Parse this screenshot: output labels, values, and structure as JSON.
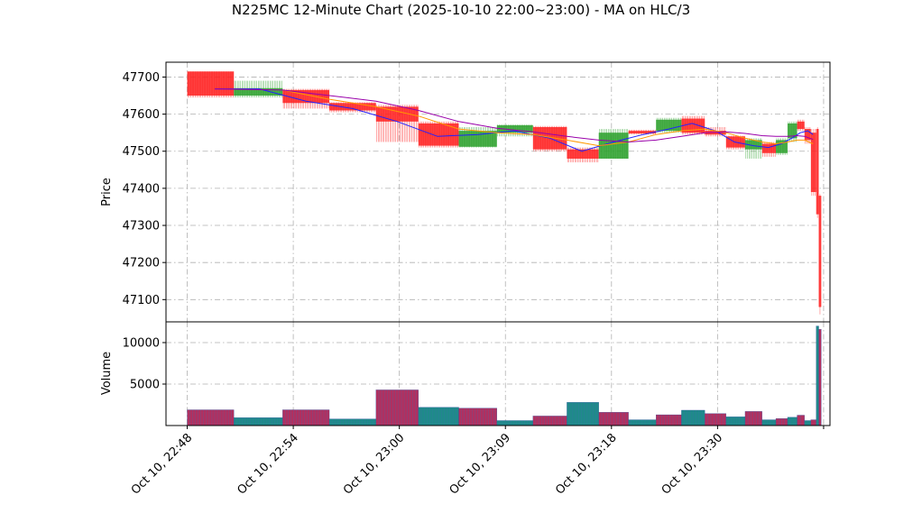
{
  "chart_data": {
    "type": "candlestick",
    "title": "N225MC 12-Minute Chart (2025-10-10 22:00~23:00) - MA on HLC/3",
    "price_panel": {
      "ylabel": "Price",
      "ylim": [
        47040,
        47740
      ],
      "yticks": [
        47100,
        47200,
        47300,
        47400,
        47500,
        47600,
        47700
      ],
      "grid": true
    },
    "volume_panel": {
      "ylabel": "Volume",
      "ylim": [
        0,
        12500
      ],
      "yticks": [
        5000,
        10000
      ],
      "grid": true
    },
    "x_axis": {
      "xlim": [
        -1.0,
        30.3
      ],
      "ticks": [
        {
          "x": 0,
          "label": "Oct 10, 22:48"
        },
        {
          "x": 5,
          "label": "Oct 10, 22:54"
        },
        {
          "x": 10,
          "label": "Oct 10, 23:00"
        },
        {
          "x": 15,
          "label": "Oct 10, 23:09"
        },
        {
          "x": 20,
          "label": "Oct 10, 23:18"
        },
        {
          "x": 25,
          "label": "Oct 10, 23:30"
        },
        {
          "x": 30,
          "label": ""
        }
      ]
    },
    "colors": {
      "up": "#2ca02c",
      "down": "#ff2020",
      "volume": "#b03060",
      "volume_alt": "#1f8a8a",
      "ma_short": "#2020ff",
      "ma_mid": "#ff9900",
      "ma_long": "#9900aa",
      "grid": "#b0b0b0"
    },
    "candles": [
      {
        "x": 0.0,
        "w": 2.2,
        "o": 47715,
        "h": 47715,
        "l": 47645,
        "c": 47650,
        "v": 1900
      },
      {
        "x": 2.2,
        "w": 2.3,
        "o": 47650,
        "h": 47690,
        "l": 47645,
        "c": 47670,
        "v": 950
      },
      {
        "x": 4.5,
        "w": 2.2,
        "o": 47665,
        "h": 47668,
        "l": 47615,
        "c": 47630,
        "v": 1900
      },
      {
        "x": 6.7,
        "w": 2.2,
        "o": 47630,
        "h": 47632,
        "l": 47605,
        "c": 47610,
        "v": 800
      },
      {
        "x": 8.9,
        "w": 2.0,
        "o": 47620,
        "h": 47625,
        "l": 47525,
        "c": 47580,
        "v": 4300
      },
      {
        "x": 10.9,
        "w": 1.9,
        "o": 47575,
        "h": 47580,
        "l": 47510,
        "c": 47515,
        "v": 2200
      },
      {
        "x": 12.8,
        "w": 1.8,
        "o": 47512,
        "h": 47565,
        "l": 47510,
        "c": 47555,
        "v": 2100
      },
      {
        "x": 14.6,
        "w": 1.7,
        "o": 47550,
        "h": 47572,
        "l": 47540,
        "c": 47570,
        "v": 600
      },
      {
        "x": 16.3,
        "w": 1.6,
        "o": 47565,
        "h": 47568,
        "l": 47500,
        "c": 47505,
        "v": 1150
      },
      {
        "x": 17.9,
        "w": 1.5,
        "o": 47505,
        "h": 47510,
        "l": 47470,
        "c": 47480,
        "v": 2800
      },
      {
        "x": 19.4,
        "w": 1.4,
        "o": 47480,
        "h": 47560,
        "l": 47480,
        "c": 47550,
        "v": 1600
      },
      {
        "x": 20.8,
        "w": 1.3,
        "o": 47555,
        "h": 47558,
        "l": 47545,
        "c": 47548,
        "v": 700
      },
      {
        "x": 22.1,
        "w": 1.2,
        "o": 47555,
        "h": 47590,
        "l": 47550,
        "c": 47585,
        "v": 1300
      },
      {
        "x": 23.3,
        "w": 1.1,
        "o": 47588,
        "h": 47595,
        "l": 47545,
        "c": 47550,
        "v": 1850
      },
      {
        "x": 24.4,
        "w": 1.0,
        "o": 47555,
        "h": 47565,
        "l": 47540,
        "c": 47545,
        "v": 1450
      },
      {
        "x": 25.4,
        "w": 0.9,
        "o": 47540,
        "h": 47542,
        "l": 47505,
        "c": 47510,
        "v": 1050
      },
      {
        "x": 26.3,
        "w": 0.8,
        "o": 47505,
        "h": 47535,
        "l": 47480,
        "c": 47530,
        "v": 1700
      },
      {
        "x": 27.1,
        "w": 0.65,
        "o": 47520,
        "h": 47525,
        "l": 47485,
        "c": 47495,
        "v": 700
      },
      {
        "x": 27.75,
        "w": 0.55,
        "o": 47495,
        "h": 47535,
        "l": 47490,
        "c": 47530,
        "v": 850
      },
      {
        "x": 28.3,
        "w": 0.45,
        "o": 47535,
        "h": 47580,
        "l": 47525,
        "c": 47575,
        "v": 1000
      },
      {
        "x": 28.75,
        "w": 0.35,
        "o": 47580,
        "h": 47585,
        "l": 47555,
        "c": 47560,
        "v": 1250
      },
      {
        "x": 29.1,
        "w": 0.3,
        "o": 47560,
        "h": 47565,
        "l": 47520,
        "c": 47530,
        "v": 600
      },
      {
        "x": 29.4,
        "w": 0.25,
        "o": 47550,
        "h": 47560,
        "l": 47380,
        "c": 47390,
        "v": 700
      },
      {
        "x": 29.65,
        "w": 0.12,
        "o": 47560,
        "h": 47565,
        "l": 47320,
        "c": 47330,
        "v": 12000
      },
      {
        "x": 29.77,
        "w": 0.12,
        "o": 47380,
        "h": 47385,
        "l": 47060,
        "c": 47080,
        "v": 11600
      }
    ],
    "ma_lines": [
      {
        "key": "ma_short",
        "points": [
          [
            1.3,
            47668
          ],
          [
            3.4,
            47668
          ],
          [
            5.6,
            47635
          ],
          [
            7.8,
            47615
          ],
          [
            9.9,
            47580
          ],
          [
            11.8,
            47540
          ],
          [
            13.7,
            47545
          ],
          [
            15.4,
            47555
          ],
          [
            17.1,
            47535
          ],
          [
            18.6,
            47500
          ],
          [
            20.1,
            47525
          ],
          [
            21.5,
            47545
          ],
          [
            22.7,
            47560
          ],
          [
            23.8,
            47575
          ],
          [
            24.9,
            47555
          ],
          [
            25.8,
            47525
          ],
          [
            26.7,
            47515
          ],
          [
            27.4,
            47510
          ],
          [
            28.0,
            47520
          ],
          [
            28.5,
            47535
          ],
          [
            28.9,
            47550
          ],
          [
            29.25,
            47555
          ],
          [
            29.5,
            47545
          ]
        ]
      },
      {
        "key": "ma_mid",
        "points": [
          [
            4.5,
            47665
          ],
          [
            6.7,
            47640
          ],
          [
            8.9,
            47620
          ],
          [
            10.9,
            47595
          ],
          [
            12.8,
            47560
          ],
          [
            14.6,
            47550
          ],
          [
            16.3,
            47545
          ],
          [
            17.9,
            47530
          ],
          [
            19.4,
            47515
          ],
          [
            20.8,
            47525
          ],
          [
            22.1,
            47545
          ],
          [
            23.3,
            47555
          ],
          [
            24.4,
            47560
          ],
          [
            25.4,
            47550
          ],
          [
            26.3,
            47535
          ],
          [
            27.1,
            47525
          ],
          [
            27.75,
            47520
          ],
          [
            28.3,
            47525
          ],
          [
            28.75,
            47530
          ],
          [
            29.1,
            47530
          ],
          [
            29.5,
            47520
          ]
        ]
      },
      {
        "key": "ma_long",
        "points": [
          [
            1.3,
            47668
          ],
          [
            4.5,
            47665
          ],
          [
            6.7,
            47650
          ],
          [
            8.9,
            47635
          ],
          [
            10.9,
            47610
          ],
          [
            12.8,
            47580
          ],
          [
            14.6,
            47562
          ],
          [
            16.3,
            47552
          ],
          [
            17.9,
            47540
          ],
          [
            19.4,
            47530
          ],
          [
            20.8,
            47525
          ],
          [
            22.1,
            47530
          ],
          [
            23.3,
            47540
          ],
          [
            24.4,
            47550
          ],
          [
            25.4,
            47552
          ],
          [
            26.3,
            47548
          ],
          [
            27.1,
            47542
          ],
          [
            27.75,
            47540
          ],
          [
            28.3,
            47540
          ],
          [
            28.75,
            47542
          ],
          [
            29.1,
            47540
          ],
          [
            29.5,
            47532
          ]
        ]
      }
    ]
  }
}
